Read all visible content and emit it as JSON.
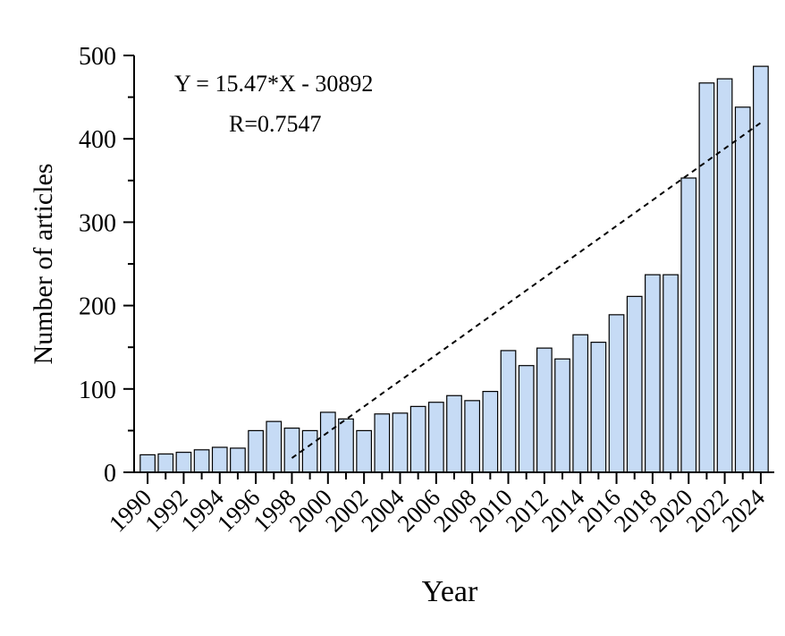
{
  "chart_data": {
    "type": "bar",
    "title": "",
    "xlabel": "Year",
    "ylabel": "Number of articles",
    "ylim": [
      0,
      500
    ],
    "yticks": [
      "0",
      "100",
      "200",
      "300",
      "400",
      "500"
    ],
    "categories": [
      "1990",
      "1991",
      "1992",
      "1993",
      "1994",
      "1995",
      "1996",
      "1997",
      "1998",
      "1999",
      "2000",
      "2001",
      "2002",
      "2003",
      "2004",
      "2005",
      "2006",
      "2007",
      "2008",
      "2009",
      "2010",
      "2011",
      "2012",
      "2013",
      "2014",
      "2015",
      "2016",
      "2017",
      "2018",
      "2019",
      "2020",
      "2021",
      "2022",
      "2023",
      "2024"
    ],
    "xtick_labels": [
      "1990",
      "1992",
      "1994",
      "1996",
      "1998",
      "2000",
      "2002",
      "2004",
      "2006",
      "2008",
      "2010",
      "2012",
      "2014",
      "2016",
      "2018",
      "2020",
      "2022",
      "2024"
    ],
    "values": [
      21,
      22,
      24,
      27,
      30,
      29,
      50,
      61,
      53,
      50,
      72,
      64,
      50,
      70,
      71,
      79,
      84,
      92,
      86,
      97,
      146,
      128,
      149,
      136,
      165,
      156,
      189,
      211,
      237,
      237,
      353,
      467,
      472,
      438,
      487
    ],
    "trendline": {
      "slope": 15.47,
      "intercept": -30892,
      "x_start": 1998,
      "x_end": 2024,
      "style": "dashed"
    },
    "annotations": [
      "Y = 15.47*X - 30892",
      "R=0.7547"
    ],
    "grid": false,
    "legend": "none",
    "bar_color": "#c6dbf5"
  }
}
